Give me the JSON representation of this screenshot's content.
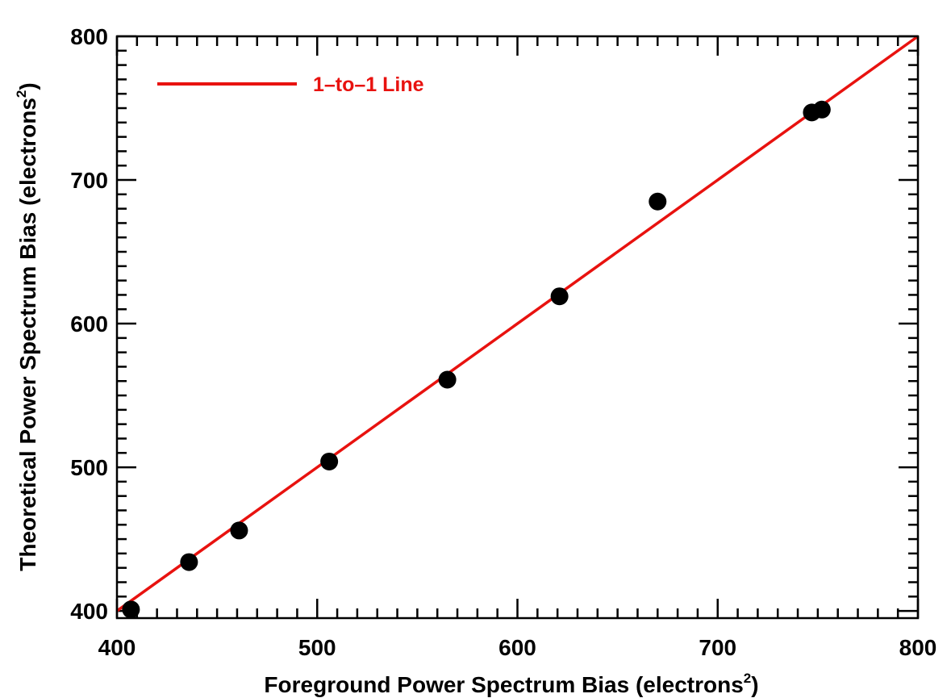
{
  "chart_data": {
    "type": "scatter",
    "xlabel": "Foreground Power Spectrum Bias (electrons",
    "xlabel_sup": "2",
    "xlabel_close": ")",
    "ylabel": "Theoretical Power Spectrum Bias (electrons",
    "ylabel_sup": "2",
    "ylabel_close": ")",
    "xlim": [
      400,
      800
    ],
    "ylim": [
      395,
      800
    ],
    "x_ticks": [
      "400",
      "500",
      "600",
      "700",
      "800"
    ],
    "y_ticks": [
      "400",
      "500",
      "600",
      "700",
      "800"
    ],
    "legend": {
      "label": "1–to–1 Line",
      "position": "top-left"
    },
    "series": [
      {
        "marker": "filled-circle",
        "color": "#000000",
        "points": [
          [
            407,
            401
          ],
          [
            436,
            434
          ],
          [
            461,
            456
          ],
          [
            506,
            504
          ],
          [
            565,
            561
          ],
          [
            621,
            619
          ],
          [
            670,
            685
          ],
          [
            747,
            747
          ],
          [
            752,
            749
          ]
        ]
      }
    ],
    "reference_line": {
      "x": [
        400,
        800
      ],
      "y": [
        400,
        800
      ],
      "color": "#e8120f"
    },
    "grid": false
  }
}
